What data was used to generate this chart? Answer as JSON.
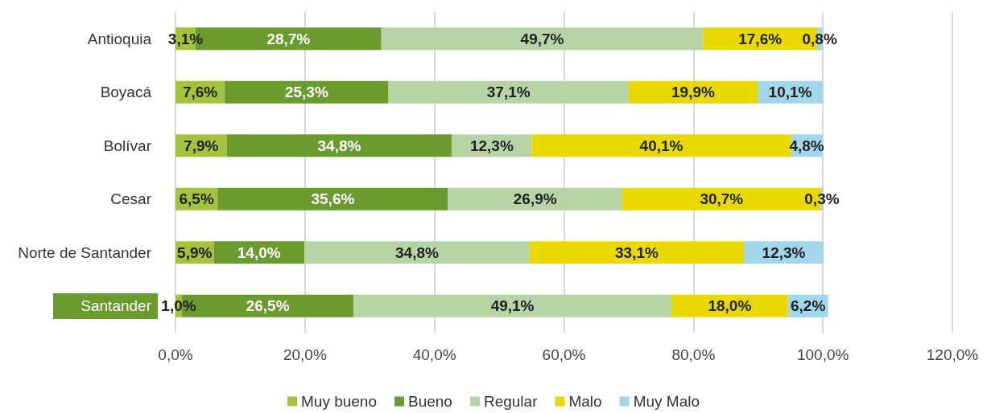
{
  "chart_data": {
    "type": "bar",
    "orientation": "horizontal",
    "stacked": true,
    "categories": [
      "Antioquia",
      "Boyacá",
      "Bolívar",
      "Cesar",
      "Norte de Santander",
      "Santander"
    ],
    "series": [
      {
        "name": "Muy bueno",
        "color": "#a4c23c",
        "values": [
          3.1,
          7.6,
          7.9,
          6.5,
          5.9,
          1.0
        ],
        "value_labels": [
          "3,1%",
          "7,6%",
          "7,9%",
          "6,5%",
          "5,9%",
          "1,0%"
        ]
      },
      {
        "name": "Bueno",
        "color": "#6b9a2f",
        "values": [
          28.7,
          25.3,
          34.8,
          35.6,
          14.0,
          26.5
        ],
        "value_labels": [
          "28,7%",
          "25,3%",
          "34,8%",
          "35,6%",
          "14,0%",
          "26,5%"
        ]
      },
      {
        "name": "Regular",
        "color": "#b6d4a6",
        "values": [
          49.7,
          37.1,
          12.3,
          26.9,
          34.8,
          49.1
        ],
        "value_labels": [
          "49,7%",
          "37,1%",
          "12,3%",
          "26,9%",
          "34,8%",
          "49,1%"
        ]
      },
      {
        "name": "Malo",
        "color": "#e9d900",
        "values": [
          17.6,
          19.9,
          40.1,
          30.7,
          33.1,
          18.0
        ],
        "value_labels": [
          "17,6%",
          "19,9%",
          "40,1%",
          "30,7%",
          "33,1%",
          "18,0%"
        ]
      },
      {
        "name": "Muy Malo",
        "color": "#a2d6ea",
        "values": [
          0.8,
          10.1,
          4.8,
          0.3,
          12.3,
          6.2
        ],
        "value_labels": [
          "0,8%",
          "10,1%",
          "4,8%",
          "0,3%",
          "12,3%",
          "6,2%"
        ]
      }
    ],
    "xlim": [
      0,
      120
    ],
    "xticks": [
      {
        "value": 0,
        "label": "0,0%"
      },
      {
        "value": 20,
        "label": "20,0%"
      },
      {
        "value": 40,
        "label": "40,0%"
      },
      {
        "value": 60,
        "label": "60,0%"
      },
      {
        "value": 80,
        "label": "80,0%"
      },
      {
        "value": 100,
        "label": "100,0%"
      },
      {
        "value": 120,
        "label": "120,0%"
      }
    ],
    "grid": "x",
    "legend": "bottom"
  }
}
